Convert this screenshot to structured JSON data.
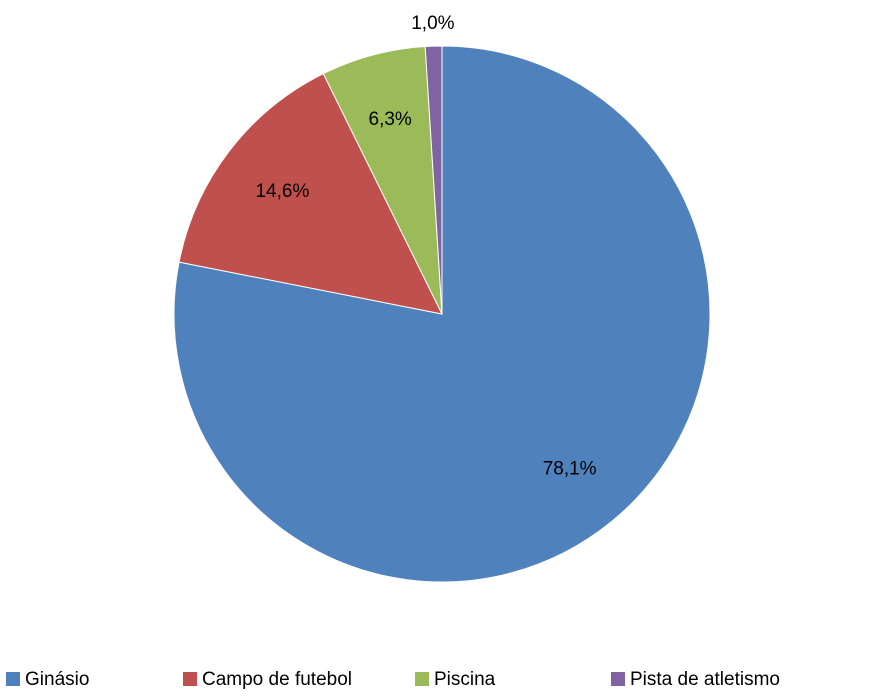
{
  "chart_data": {
    "type": "pie",
    "categories": [
      "Ginásio",
      "Campo de futebol",
      "Piscina",
      "Pista de atletismo"
    ],
    "values": [
      78.1,
      14.6,
      6.3,
      1.0
    ],
    "value_labels": [
      "78,1%",
      "14,6%",
      "6,3%",
      "1,0%"
    ],
    "colors": [
      "#4f81bd",
      "#c0504d",
      "#9bbb59",
      "#8064a2"
    ],
    "legend": "bottom"
  }
}
